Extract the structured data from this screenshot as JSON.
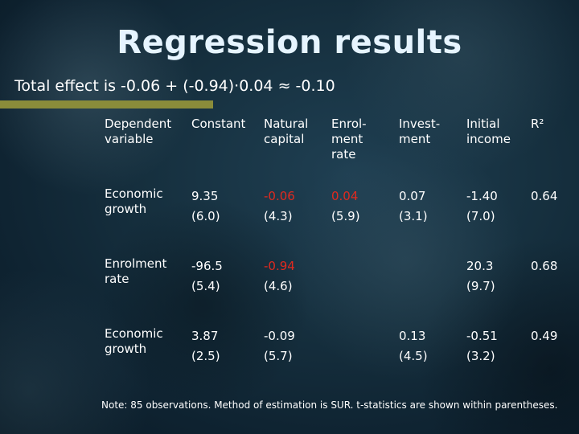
{
  "slide": {
    "title": "Regression results",
    "subtitle": "Total effect is -0.06 + (-0.94)·0.04 ≈ -0.10",
    "note": "Note: 85 observations. Method of estimation is SUR. t-statistics are shown within parentheses.",
    "accent_color": "#e02a1f"
  },
  "table": {
    "headers": {
      "dependent": "Dependent variable",
      "constant": "Constant",
      "natural_capital": "Natural capital",
      "enrolment_rate": "Enrol- ment rate",
      "investment": "Invest- ment",
      "initial_income": "Initial income",
      "r2": "R²"
    },
    "rows": [
      {
        "label": "Economic growth",
        "constant": "9.35",
        "constant_t": "(6.0)",
        "natural_capital": "-0.06",
        "natural_capital_t": "(4.3)",
        "enrolment_rate": "0.04",
        "enrolment_rate_t": "(5.9)",
        "investment": "0.07",
        "investment_t": "(3.1)",
        "initial_income": "-1.40",
        "initial_income_t": "(7.0)",
        "r2": "0.64"
      },
      {
        "label": "Enrolment rate",
        "constant": "-96.5",
        "constant_t": "(5.4)",
        "natural_capital": "-0.94",
        "natural_capital_t": "(4.6)",
        "initial_income": "20.3",
        "initial_income_t": "(9.7)",
        "r2": "0.68"
      },
      {
        "label": "Economic growth",
        "constant": "3.87",
        "constant_t": "(2.5)",
        "natural_capital": "-0.09",
        "natural_capital_t": "(5.7)",
        "investment": "0.13",
        "investment_t": "(4.5)",
        "initial_income": "-0.51",
        "initial_income_t": "(3.2)",
        "r2": "0.49"
      }
    ]
  }
}
